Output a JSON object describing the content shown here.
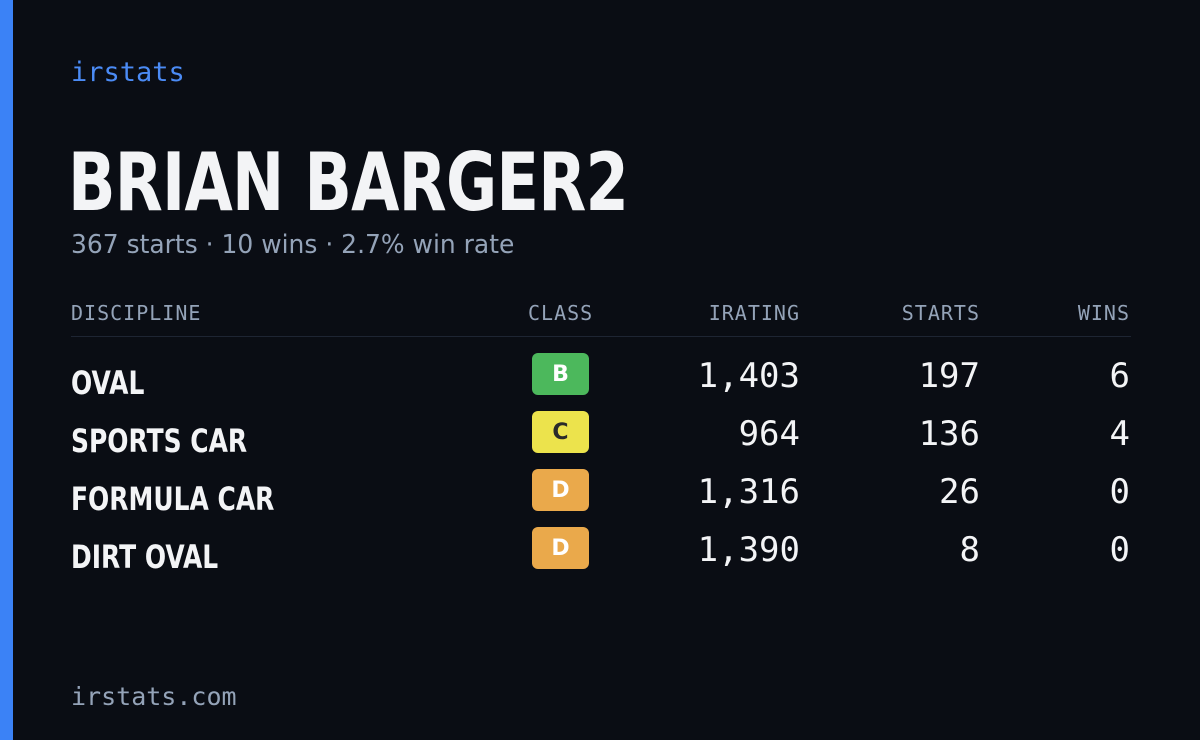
{
  "brand": "irstats",
  "driver": {
    "name": "BRIAN BARGER2",
    "summary": "367 starts · 10 wins · 2.7% win rate"
  },
  "table": {
    "headers": {
      "discipline": "DISCIPLINE",
      "class": "CLASS",
      "irating": "IRATING",
      "starts": "STARTS",
      "wins": "WINS"
    },
    "rows": [
      {
        "discipline": "OVAL",
        "class": "B",
        "class_color": "#4cb85c",
        "class_text_color": "#ffffff",
        "irating": "1,403",
        "starts": "197",
        "wins": "6"
      },
      {
        "discipline": "SPORTS CAR",
        "class": "C",
        "class_color": "#ece34c",
        "class_text_color": "#2a2a2a",
        "irating": "964",
        "starts": "136",
        "wins": "4"
      },
      {
        "discipline": "FORMULA CAR",
        "class": "D",
        "class_color": "#eaa94b",
        "class_text_color": "#ffffff",
        "irating": "1,316",
        "starts": "26",
        "wins": "0"
      },
      {
        "discipline": "DIRT OVAL",
        "class": "D",
        "class_color": "#eaa94b",
        "class_text_color": "#ffffff",
        "irating": "1,390",
        "starts": "8",
        "wins": "0"
      }
    ]
  },
  "footer": "irstats.com",
  "colors": {
    "accent": "#3b82f6",
    "background": "#0a0d14",
    "muted": "#94a3b8",
    "text": "#f3f4f6"
  }
}
